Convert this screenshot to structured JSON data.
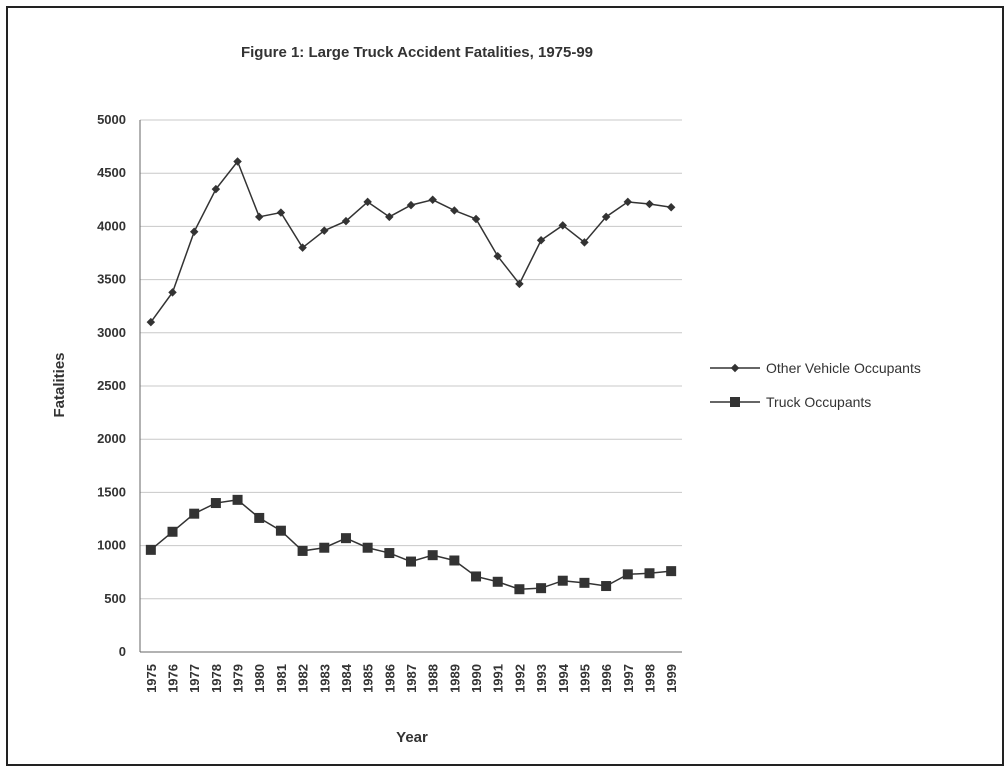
{
  "chart_data": {
    "type": "line",
    "title": "Figure 1: Large Truck Accident Fatalities, 1975-99",
    "xlabel": "Year",
    "ylabel": "Fatalities",
    "categories": [
      "1975",
      "1976",
      "1977",
      "1978",
      "1979",
      "1980",
      "1981",
      "1982",
      "1983",
      "1984",
      "1985",
      "1986",
      "1987",
      "1988",
      "1989",
      "1990",
      "1991",
      "1992",
      "1993",
      "1994",
      "1995",
      "1996",
      "1997",
      "1998",
      "1999"
    ],
    "yticks": [
      "0",
      "500",
      "1000",
      "1500",
      "2000",
      "2500",
      "3000",
      "3500",
      "4000",
      "4500",
      "5000"
    ],
    "ylim": [
      0,
      5000
    ],
    "grid": true,
    "legend_position": "right",
    "series": [
      {
        "name": "Other Vehicle Occupants",
        "color": "#333333",
        "marker": "small-diamond",
        "values": [
          3100,
          3380,
          3950,
          4350,
          4610,
          4090,
          4130,
          3800,
          3960,
          4050,
          4230,
          4090,
          4200,
          4250,
          4150,
          4070,
          3720,
          3460,
          3870,
          4010,
          3850,
          4090,
          4230,
          4210,
          4180
        ]
      },
      {
        "name": "Truck Occupants",
        "color": "#333333",
        "marker": "square",
        "values": [
          960,
          1130,
          1300,
          1400,
          1430,
          1260,
          1140,
          950,
          980,
          1070,
          980,
          930,
          850,
          910,
          860,
          710,
          660,
          590,
          600,
          670,
          650,
          620,
          730,
          740,
          760
        ]
      }
    ]
  }
}
